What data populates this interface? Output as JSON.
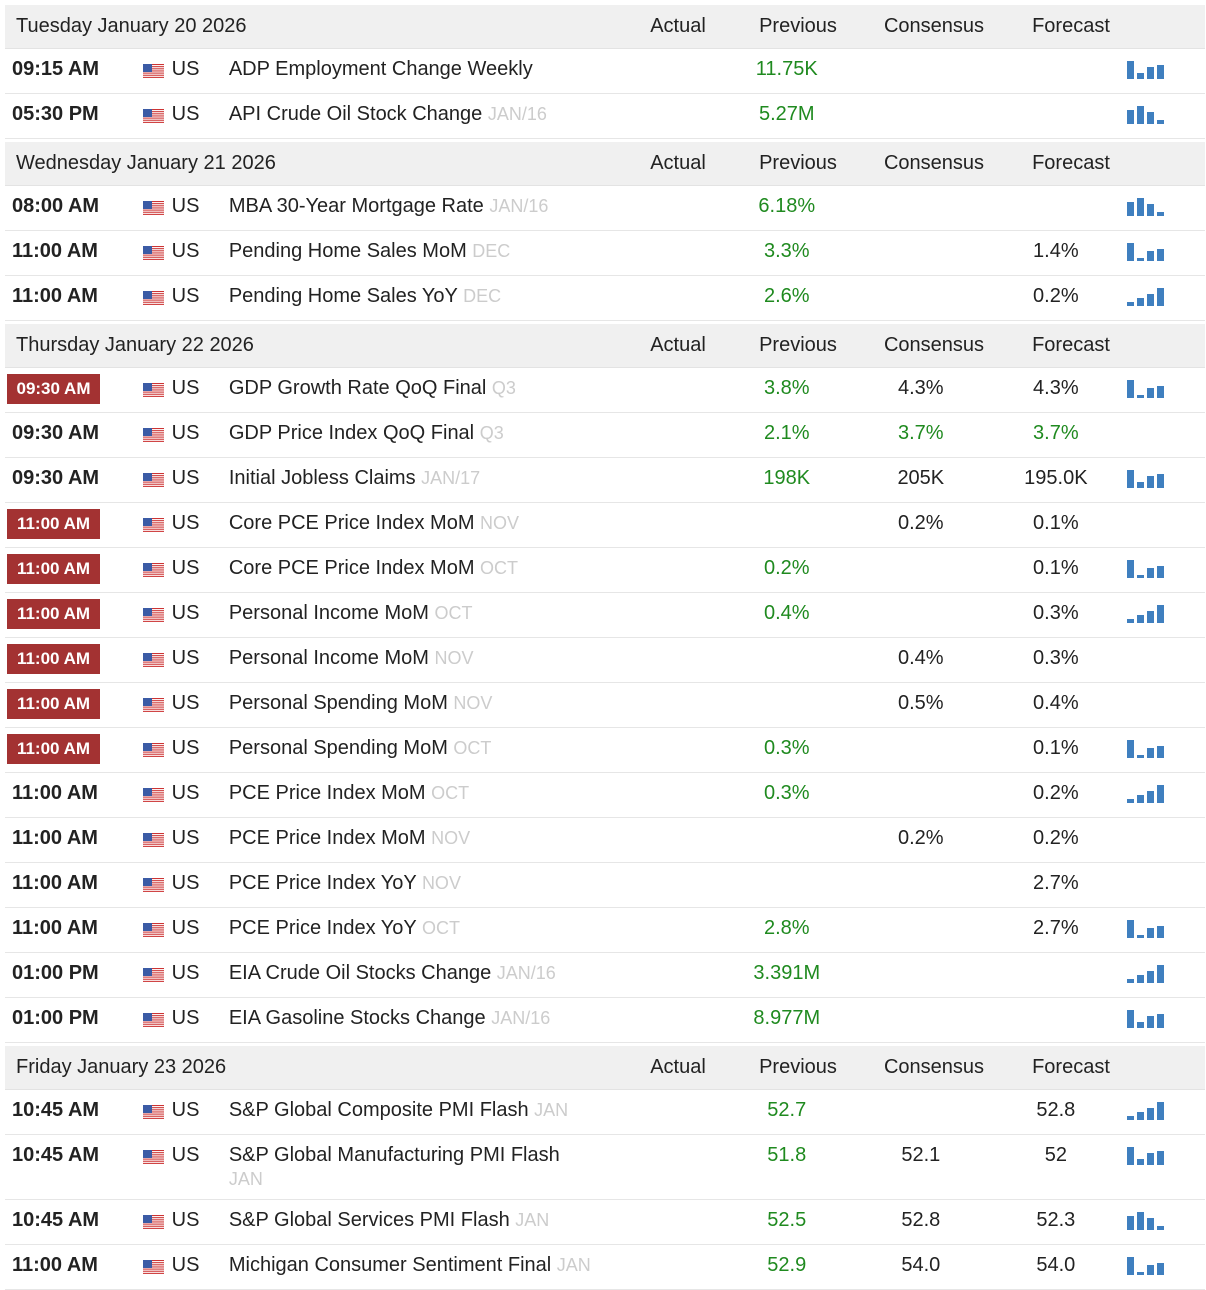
{
  "days": [
    {
      "date": "Tuesday January 20 2026",
      "columns": [
        "Actual",
        "Previous",
        "Consensus",
        "Forecast"
      ],
      "events": [
        {
          "time": "09:15 AM",
          "country": "US",
          "event": "ADP Employment Change Weekly",
          "previous": "11.75K",
          "chart": true
        },
        {
          "time": "05:30 PM",
          "country": "US",
          "event": "API Crude Oil Stock Change",
          "reference": "JAN/16",
          "previous": "5.27M",
          "chart": true
        }
      ]
    },
    {
      "date": "Wednesday January 21 2026",
      "columns": [
        "Actual",
        "Previous",
        "Consensus",
        "Forecast"
      ],
      "events": [
        {
          "time": "08:00 AM",
          "country": "US",
          "event": "MBA 30-Year Mortgage Rate",
          "reference": "JAN/16",
          "previous": "6.18%",
          "chart": true
        },
        {
          "time": "11:00 AM",
          "country": "US",
          "event": "Pending Home Sales MoM",
          "reference": "DEC",
          "previous": "3.3%",
          "forecast": "1.4%",
          "chart": true
        },
        {
          "time": "11:00 AM",
          "country": "US",
          "event": "Pending Home Sales YoY",
          "reference": "DEC",
          "previous": "2.6%",
          "forecast": "0.2%",
          "chart": true
        }
      ]
    },
    {
      "date": "Thursday January 22 2026",
      "columns": [
        "Actual",
        "Previous",
        "Consensus",
        "Forecast"
      ],
      "events": [
        {
          "time": "09:30 AM",
          "important": true,
          "country": "US",
          "event": "GDP Growth Rate QoQ Final",
          "reference": "Q3",
          "previous": "3.8%",
          "consensus": "4.3%",
          "forecast": "4.3%",
          "chart": true
        },
        {
          "time": "09:30 AM",
          "country": "US",
          "event": "GDP Price Index QoQ Final",
          "reference": "Q3",
          "previous": "2.1%",
          "consensus": "3.7%",
          "forecast": "3.7%",
          "consensus_color": "#1f8a1f",
          "forecast_color": "#1f8a1f"
        },
        {
          "time": "09:30 AM",
          "country": "US",
          "event": "Initial Jobless Claims",
          "reference": "JAN/17",
          "previous": "198K",
          "consensus": "205K",
          "forecast": "195.0K",
          "chart": true
        },
        {
          "time": "11:00 AM",
          "important": true,
          "country": "US",
          "event": "Core PCE Price Index MoM",
          "reference": "NOV",
          "consensus": "0.2%",
          "forecast": "0.1%"
        },
        {
          "time": "11:00 AM",
          "important": true,
          "country": "US",
          "event": "Core PCE Price Index MoM",
          "reference": "OCT",
          "previous": "0.2%",
          "forecast": "0.1%",
          "chart": true
        },
        {
          "time": "11:00 AM",
          "important": true,
          "country": "US",
          "event": "Personal Income MoM",
          "reference": "OCT",
          "previous": "0.4%",
          "forecast": "0.3%",
          "chart": true
        },
        {
          "time": "11:00 AM",
          "important": true,
          "country": "US",
          "event": "Personal Income MoM",
          "reference": "NOV",
          "consensus": "0.4%",
          "forecast": "0.3%"
        },
        {
          "time": "11:00 AM",
          "important": true,
          "country": "US",
          "event": "Personal Spending MoM",
          "reference": "NOV",
          "consensus": "0.5%",
          "forecast": "0.4%"
        },
        {
          "time": "11:00 AM",
          "important": true,
          "country": "US",
          "event": "Personal Spending MoM",
          "reference": "OCT",
          "previous": "0.3%",
          "forecast": "0.1%",
          "chart": true
        },
        {
          "time": "11:00 AM",
          "country": "US",
          "event": "PCE Price Index MoM",
          "reference": "OCT",
          "previous": "0.3%",
          "forecast": "0.2%",
          "chart": true
        },
        {
          "time": "11:00 AM",
          "country": "US",
          "event": "PCE Price Index MoM",
          "reference": "NOV",
          "consensus": "0.2%",
          "forecast": "0.2%"
        },
        {
          "time": "11:00 AM",
          "country": "US",
          "event": "PCE Price Index YoY",
          "reference": "NOV",
          "forecast": "2.7%"
        },
        {
          "time": "11:00 AM",
          "country": "US",
          "event": "PCE Price Index YoY",
          "reference": "OCT",
          "previous": "2.8%",
          "forecast": "2.7%",
          "chart": true
        },
        {
          "time": "01:00 PM",
          "country": "US",
          "event": "EIA Crude Oil Stocks Change",
          "reference": "JAN/16",
          "previous": "3.391M",
          "chart": true
        },
        {
          "time": "01:00 PM",
          "country": "US",
          "event": "EIA Gasoline Stocks Change",
          "reference": "JAN/16",
          "previous": "8.977M",
          "chart": true
        }
      ]
    },
    {
      "date": "Friday January 23 2026",
      "columns": [
        "Actual",
        "Previous",
        "Consensus",
        "Forecast"
      ],
      "events": [
        {
          "time": "10:45 AM",
          "country": "US",
          "event": "S&P Global Composite PMI Flash",
          "reference": "JAN",
          "previous": "52.7",
          "forecast": "52.8",
          "chart": true
        },
        {
          "time": "10:45 AM",
          "country": "US",
          "event": "S&P Global Manufacturing PMI Flash",
          "reference": "JAN",
          "previous": "51.8",
          "consensus": "52.1",
          "forecast": "52",
          "chart": true
        },
        {
          "time": "10:45 AM",
          "country": "US",
          "event": "S&P Global Services PMI Flash",
          "reference": "JAN",
          "previous": "52.5",
          "consensus": "52.8",
          "forecast": "52.3",
          "chart": true
        },
        {
          "time": "11:00 AM",
          "country": "US",
          "event": "Michigan Consumer Sentiment Final",
          "reference": "JAN",
          "previous": "52.9",
          "consensus": "54.0",
          "forecast": "54.0",
          "chart": true
        }
      ]
    }
  ]
}
